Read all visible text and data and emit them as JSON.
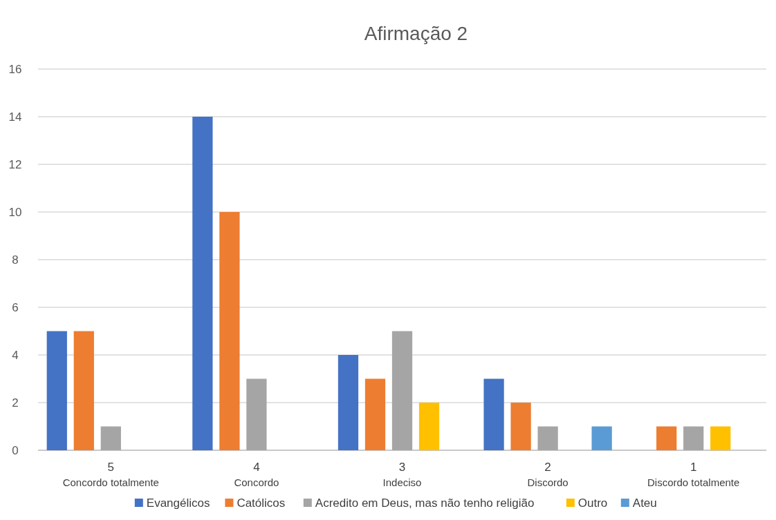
{
  "chart_data": {
    "type": "bar",
    "title": "Afirmação 2",
    "categories": [
      "5\nConcordo totalmente",
      "4\nConcordo",
      "3\nIndeciso",
      "2\nDiscordo",
      "1\nDiscordo totalmente"
    ],
    "series": [
      {
        "name": "Evangélicos",
        "color": "#4472c4",
        "values": [
          5,
          14,
          4,
          3,
          0
        ]
      },
      {
        "name": "Católicos",
        "color": "#ed7d31",
        "values": [
          5,
          10,
          3,
          2,
          1
        ]
      },
      {
        "name": "Acredito em Deus, mas não tenho religião",
        "color": "#a5a5a5",
        "values": [
          1,
          3,
          5,
          1,
          1
        ]
      },
      {
        "name": "Outro",
        "color": "#ffc000",
        "values": [
          0,
          0,
          2,
          0,
          1
        ]
      },
      {
        "name": "Ateu",
        "color": "#5b9bd5",
        "values": [
          0,
          0,
          0,
          1,
          0
        ]
      }
    ],
    "ylim": [
      0,
      16
    ],
    "yticks": [
      0,
      2,
      4,
      6,
      8,
      10,
      12,
      14,
      16
    ],
    "grid": "y",
    "legend": "bottom"
  }
}
